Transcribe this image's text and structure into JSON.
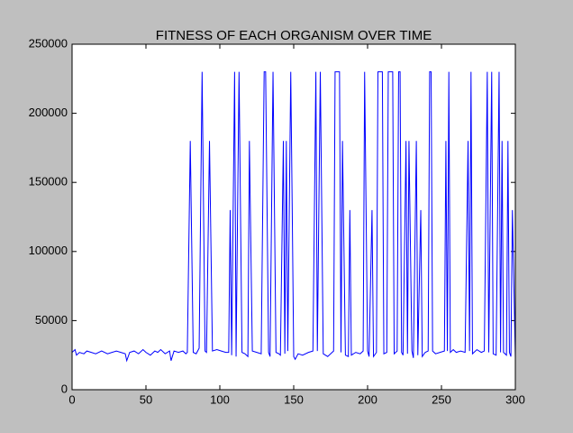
{
  "chart_data": {
    "type": "line",
    "title": "FITNESS OF EACH ORGANISM OVER TIME",
    "x": [
      0,
      2,
      3,
      5,
      8,
      10,
      13,
      16,
      20,
      24,
      27,
      30,
      33,
      36,
      37,
      39,
      42,
      45,
      48,
      50,
      53,
      56,
      58,
      60,
      63,
      66,
      67,
      69,
      72,
      75,
      77,
      78,
      80,
      82,
      84,
      86,
      88,
      90,
      91,
      93,
      95,
      98,
      101,
      104,
      106,
      107,
      108,
      110,
      111,
      113,
      115,
      117,
      119,
      120,
      122,
      125,
      128,
      130,
      131,
      133,
      134,
      136,
      138,
      140,
      141,
      143,
      144,
      145,
      146,
      148,
      149,
      150,
      151,
      153,
      156,
      160,
      163,
      165,
      166,
      168,
      170,
      173,
      176,
      177,
      178,
      181,
      182,
      183,
      185,
      187,
      188,
      189,
      192,
      195,
      197,
      198,
      200,
      201,
      203,
      204,
      206,
      207,
      210,
      211,
      213,
      214,
      217,
      218,
      219,
      220,
      221,
      222,
      223,
      224,
      226,
      227,
      228,
      230,
      231,
      233,
      234,
      236,
      237,
      239,
      241,
      242,
      243,
      244,
      246,
      249,
      252,
      253,
      254,
      255,
      256,
      258,
      260,
      263,
      266,
      268,
      269,
      270,
      271,
      274,
      277,
      279,
      281,
      282,
      284,
      285,
      287,
      289,
      290,
      291,
      292,
      294,
      295,
      296,
      297,
      298,
      300
    ],
    "series": [
      {
        "color": "#0000ff",
        "values": [
          27000,
          29000,
          25000,
          27000,
          26000,
          28000,
          27000,
          26000,
          28000,
          26000,
          27000,
          28000,
          27000,
          26000,
          21000,
          27000,
          28000,
          26000,
          29000,
          27000,
          25000,
          28000,
          27000,
          29000,
          26000,
          28000,
          21000,
          28000,
          27000,
          28000,
          26000,
          27000,
          180000,
          27000,
          26000,
          30000,
          230000,
          28000,
          27000,
          180000,
          28000,
          29000,
          28000,
          27000,
          27000,
          130000,
          25000,
          230000,
          24000,
          230000,
          27000,
          26000,
          24000,
          180000,
          28000,
          27000,
          26000,
          230000,
          230000,
          27000,
          24000,
          230000,
          27000,
          26000,
          25000,
          180000,
          26000,
          180000,
          28000,
          230000,
          130000,
          24000,
          22000,
          26000,
          25000,
          27000,
          28000,
          230000,
          28000,
          230000,
          26000,
          24000,
          27000,
          28000,
          230000,
          230000,
          27000,
          180000,
          25000,
          24000,
          130000,
          25000,
          27000,
          26000,
          28000,
          230000,
          28000,
          24000,
          130000,
          24000,
          27000,
          230000,
          230000,
          26000,
          27000,
          230000,
          230000,
          26000,
          27000,
          28000,
          230000,
          230000,
          27000,
          25000,
          180000,
          26000,
          180000,
          28000,
          23000,
          180000,
          25000,
          130000,
          24000,
          27000,
          28000,
          230000,
          230000,
          28000,
          26000,
          27000,
          28000,
          180000,
          28000,
          230000,
          27000,
          29000,
          27000,
          28000,
          27000,
          180000,
          28000,
          230000,
          26000,
          29000,
          27000,
          28000,
          230000,
          27000,
          230000,
          26000,
          25000,
          230000,
          27000,
          180000,
          27000,
          25000,
          180000,
          27000,
          24000,
          130000,
          23000
        ]
      }
    ],
    "xlim": [
      0,
      300
    ],
    "xticks": [
      0,
      50,
      100,
      150,
      200,
      250,
      300
    ],
    "ylim": [
      0,
      250000
    ],
    "yticks": [
      0,
      50000,
      100000,
      150000,
      200000,
      250000
    ]
  }
}
